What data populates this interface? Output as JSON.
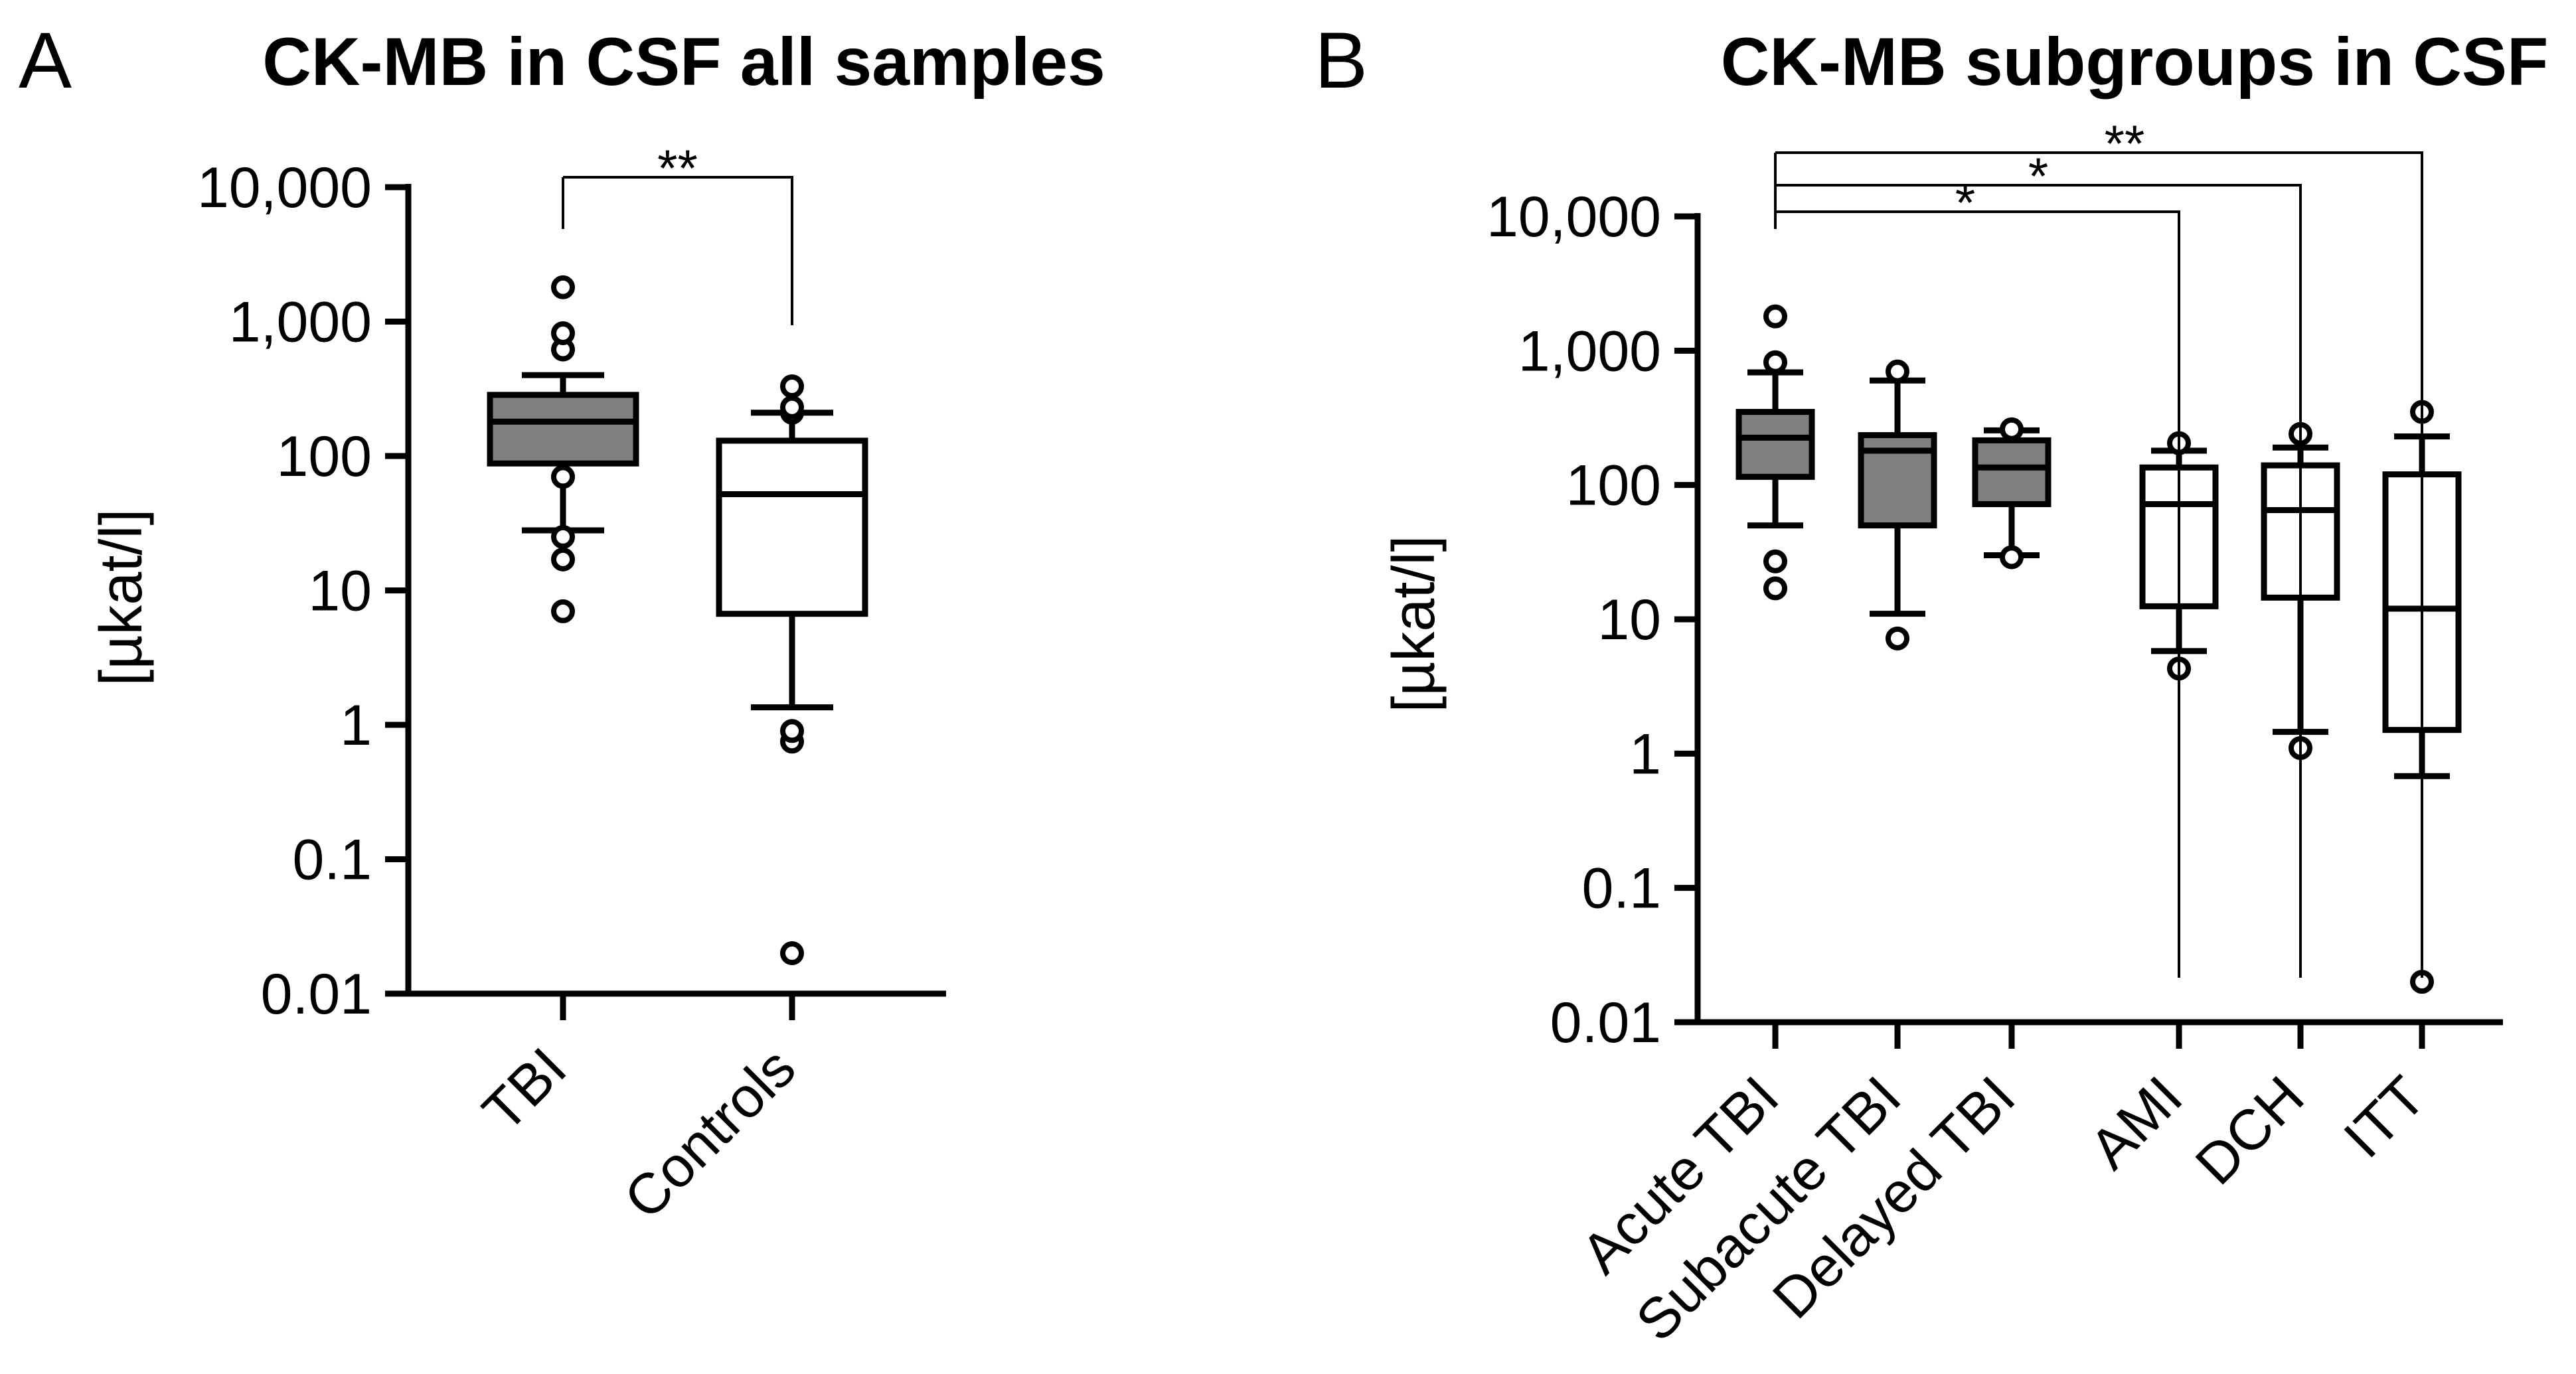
{
  "chart_data": [
    {
      "panel_label": "A",
      "type": "box",
      "title": "CK-MB in CSF all samples",
      "ylabel": "[µkat/l]",
      "yscale": "log",
      "ylim": [
        0.01,
        10000
      ],
      "yticks": [
        0.01,
        0.1,
        1,
        10,
        100,
        1000,
        10000
      ],
      "ytick_labels": [
        "0.01",
        "0.1",
        "1",
        "10",
        "100",
        "1,000",
        "10,000"
      ],
      "categories": [
        "TBI",
        "Controls"
      ],
      "boxes": [
        {
          "name": "TBI",
          "fill": "#7f7f7f",
          "whisker_low": 28,
          "q1": 88,
          "median": 180,
          "q3": 285,
          "whisker_high": 400,
          "outliers": [
            7,
            17,
            25,
            70,
            620,
            820,
            1800
          ]
        },
        {
          "name": "Controls",
          "fill": "#ffffff",
          "whisker_low": 1.35,
          "q1": 6.7,
          "median": 52,
          "q3": 130,
          "whisker_high": 210,
          "outliers": [
            0.02,
            0.75,
            0.9,
            210,
            230,
            330
          ]
        }
      ],
      "significance": [
        {
          "from": "TBI",
          "to": "Controls",
          "label": "**"
        }
      ]
    },
    {
      "panel_label": "B",
      "type": "box",
      "title": "CK-MB subgroups in CSF",
      "ylabel": "[µkat/l]",
      "yscale": "log",
      "ylim": [
        0.01,
        10000
      ],
      "yticks": [
        0.01,
        0.1,
        1,
        10,
        100,
        1000,
        10000
      ],
      "ytick_labels": [
        "0.01",
        "0.1",
        "1",
        "10",
        "100",
        "1,000",
        "10,000"
      ],
      "categories": [
        "Acute TBI",
        "Subacute TBI",
        "Delayed TBI",
        "AMI",
        "DCH",
        "ITT"
      ],
      "boxes": [
        {
          "name": "Acute TBI",
          "fill": "#7f7f7f",
          "whisker_low": 50,
          "q1": 115,
          "median": 225,
          "q3": 350,
          "whisker_high": 690,
          "outliers": [
            17,
            27,
            820,
            1800
          ]
        },
        {
          "name": "Subacute TBI",
          "fill": "#7f7f7f",
          "whisker_low": 11,
          "q1": 50,
          "median": 180,
          "q3": 235,
          "whisker_high": 600,
          "outliers": [
            7.2,
            700
          ]
        },
        {
          "name": "Delayed TBI",
          "fill": "#7f7f7f",
          "whisker_low": 30,
          "q1": 72,
          "median": 135,
          "q3": 215,
          "whisker_high": 255,
          "outliers": [
            29,
            260
          ]
        },
        {
          "name": "AMI",
          "fill": "#ffffff",
          "whisker_low": 5.8,
          "q1": 12.5,
          "median": 72,
          "q3": 135,
          "whisker_high": 180,
          "outliers": [
            4.3,
            205
          ]
        },
        {
          "name": "DCH",
          "fill": "#ffffff",
          "whisker_low": 1.45,
          "q1": 14.5,
          "median": 65,
          "q3": 140,
          "whisker_high": 190,
          "outliers": [
            1.1,
            240
          ]
        },
        {
          "name": "ITT",
          "fill": "#ffffff",
          "whisker_low": 0.68,
          "q1": 1.5,
          "median": 12,
          "q3": 120,
          "whisker_high": 230,
          "outliers": [
            0.02,
            350
          ]
        }
      ],
      "significance": [
        {
          "from": "Acute TBI",
          "to": "AMI",
          "label": "*"
        },
        {
          "from": "Acute TBI",
          "to": "DCH",
          "label": "*"
        },
        {
          "from": "Acute TBI",
          "to": "ITT",
          "label": "**"
        }
      ]
    }
  ]
}
